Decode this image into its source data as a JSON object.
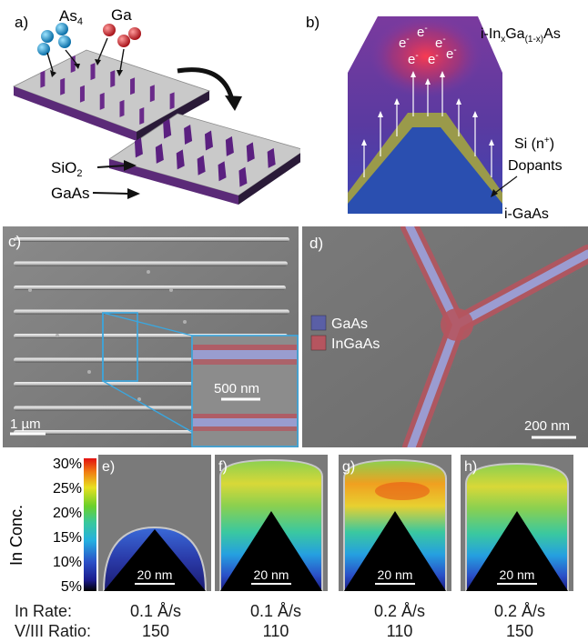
{
  "panel_a": {
    "label": "a)",
    "species_left": "As",
    "species_left_sub": "4",
    "species_right": "Ga",
    "layer_top": "SiO",
    "layer_top_sub": "2",
    "layer_bottom": "GaAs"
  },
  "panel_b": {
    "label": "b)",
    "shell_prefix": "i-In",
    "shell_sub1": "x",
    "shell_mid": "Ga",
    "shell_sub2": "(1-x)",
    "shell_suffix": "As",
    "electron": "e",
    "electron_sup": "-",
    "dopant_line1": "Si (n",
    "dopant_sup": "+",
    "dopant_line1_end": ")",
    "dopant_line2": "Dopants",
    "core": "i-GaAs"
  },
  "panel_c": {
    "label": "c)",
    "inset_scale": "500 nm",
    "scale": "1 µm"
  },
  "panel_d": {
    "label": "d)",
    "legend": [
      {
        "name": "GaAs",
        "color": "#5a5fa6"
      },
      {
        "name": "InGaAs",
        "color": "#b5555f"
      }
    ],
    "scale": "200 nm"
  },
  "colorbar": {
    "title": "In Conc.",
    "ticks": [
      "30%",
      "25%",
      "20%",
      "15%",
      "10%",
      "5%"
    ]
  },
  "maps": [
    {
      "label": "e)",
      "scale": "20 nm"
    },
    {
      "label": "f)",
      "scale": "20 nm"
    },
    {
      "label": "g)",
      "scale": "20 nm"
    },
    {
      "label": "h)",
      "scale": "20 nm"
    }
  ],
  "table": {
    "rate_label": "In Rate:",
    "ratio_label": "V/III Ratio:",
    "rates": [
      "0.1 Å/s",
      "0.1 Å/s",
      "0.2 Å/s",
      "0.2 Å/s"
    ],
    "ratios": [
      "150",
      "110",
      "110",
      "150"
    ]
  },
  "colors": {
    "mask": "#c9c9c9",
    "trench": "#6a2a8a",
    "core_blue": "#2a4fb0",
    "shell_green": "#9a9a4a",
    "sem_bg": "#7d7d7d",
    "inset_frame": "#3aa7e0"
  }
}
